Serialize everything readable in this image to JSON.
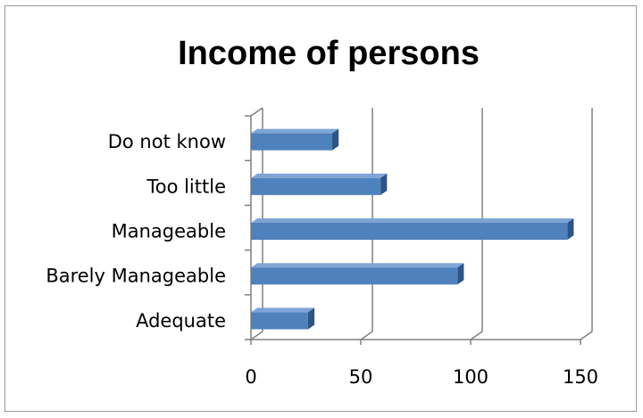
{
  "chart_data": {
    "type": "bar",
    "orientation": "horizontal",
    "style": "3d",
    "title": "Income of persons",
    "categories": [
      "Adequate",
      "Barely Manageable",
      "Manageable",
      "Too little",
      "Do not know"
    ],
    "values": [
      26,
      94,
      144,
      59,
      37
    ],
    "xlim": [
      0,
      150
    ],
    "ticks": [
      0,
      50,
      100,
      150
    ],
    "grid": true,
    "legend": "none",
    "colors": {
      "bar_front": "#4f81bd",
      "bar_top": "#7fa4d6",
      "bar_side": "#2c5488",
      "axis": "#808080"
    }
  }
}
